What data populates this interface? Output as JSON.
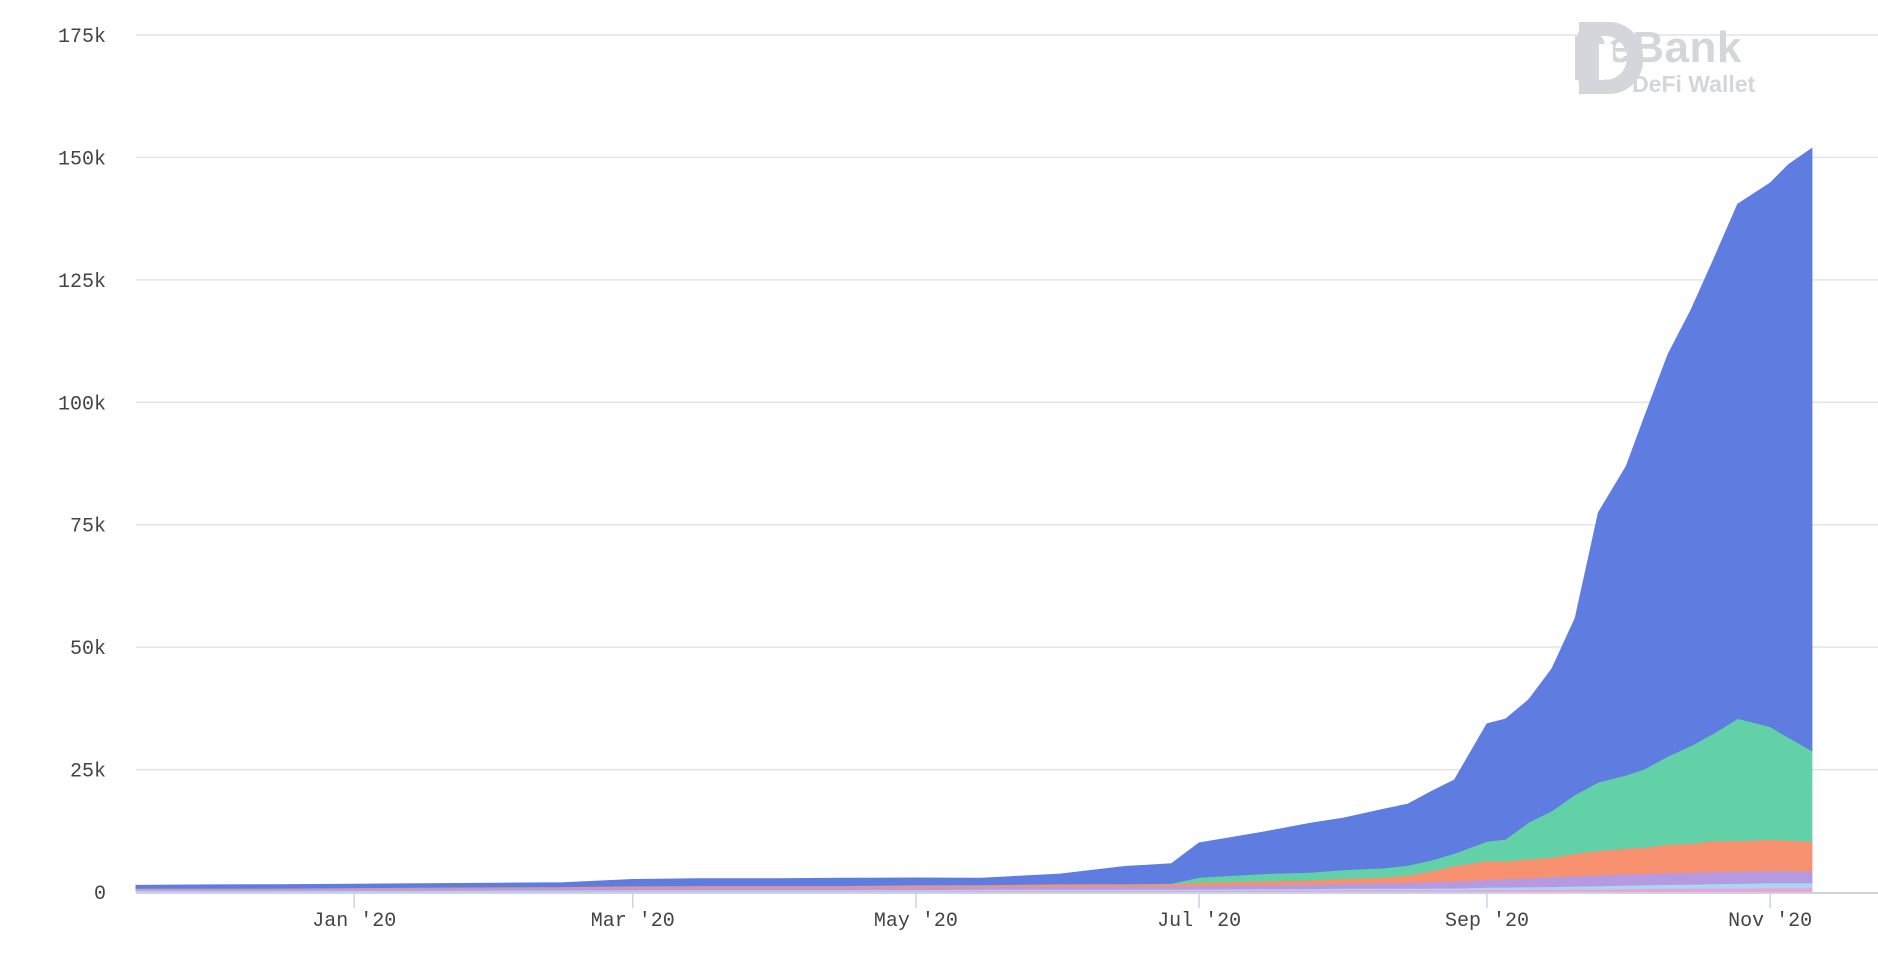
{
  "watermark": {
    "brand": "DeBank",
    "tagline": "Your DeFi Wallet",
    "logo_icon": "debank-logo-icon"
  },
  "chart_data": {
    "type": "area",
    "stacked": true,
    "grid": true,
    "legend": "none",
    "ylim": [
      0,
      175000
    ],
    "yticks": [
      0,
      25000,
      50000,
      75000,
      100000,
      125000,
      150000,
      175000
    ],
    "ytick_labels": [
      "0",
      "25k",
      "50k",
      "75k",
      "100k",
      "125k",
      "150k",
      "175k"
    ],
    "xlim": [
      "2019-11-15",
      "2020-11-21"
    ],
    "xticks": [
      "2020-01-01",
      "2020-03-01",
      "2020-05-01",
      "2020-07-01",
      "2020-09-01",
      "2020-11-01"
    ],
    "xtick_labels": [
      "Jan '20",
      "Mar '20",
      "May '20",
      "Jul '20",
      "Sep '20",
      "Nov '20"
    ],
    "x": [
      "2019-11-15",
      "2019-12-01",
      "2019-12-15",
      "2020-01-01",
      "2020-01-15",
      "2020-02-01",
      "2020-02-15",
      "2020-03-01",
      "2020-03-15",
      "2020-04-01",
      "2020-04-15",
      "2020-05-01",
      "2020-05-15",
      "2020-06-01",
      "2020-06-15",
      "2020-06-25",
      "2020-07-01",
      "2020-07-15",
      "2020-07-25",
      "2020-08-01",
      "2020-08-10",
      "2020-08-15",
      "2020-08-20",
      "2020-08-25",
      "2020-09-01",
      "2020-09-05",
      "2020-09-10",
      "2020-09-15",
      "2020-09-20",
      "2020-09-25",
      "2020-10-01",
      "2020-10-05",
      "2020-10-10",
      "2020-10-15",
      "2020-10-20",
      "2020-10-25",
      "2020-11-01",
      "2020-11-05",
      "2020-11-10"
    ],
    "series": [
      {
        "color": "#f0a0d6",
        "values": [
          200,
          200,
          200,
          200,
          200,
          200,
          200,
          250,
          250,
          250,
          250,
          250,
          300,
          300,
          300,
          300,
          300,
          350,
          350,
          400,
          400,
          400,
          400,
          400,
          500,
          500,
          550,
          550,
          600,
          600,
          700,
          700,
          750,
          750,
          800,
          800,
          850,
          850,
          850
        ]
      },
      {
        "color": "#a8d8f0",
        "values": [
          150,
          150,
          150,
          150,
          150,
          200,
          200,
          200,
          200,
          200,
          200,
          250,
          250,
          250,
          250,
          250,
          300,
          300,
          300,
          350,
          350,
          350,
          400,
          400,
          450,
          500,
          500,
          550,
          600,
          650,
          700,
          750,
          800,
          850,
          900,
          950,
          1000,
          1000,
          1000
        ]
      },
      {
        "color": "#b59ae2",
        "values": [
          300,
          350,
          350,
          400,
          450,
          450,
          500,
          500,
          550,
          550,
          550,
          550,
          550,
          600,
          600,
          600,
          700,
          800,
          900,
          1000,
          1100,
          1200,
          1300,
          1400,
          1600,
          1700,
          1800,
          2000,
          2100,
          2200,
          2300,
          2300,
          2400,
          2400,
          2500,
          2500,
          2500,
          2500,
          2400
        ]
      },
      {
        "color": "#f7916f",
        "values": [
          100,
          100,
          100,
          150,
          150,
          200,
          200,
          300,
          300,
          300,
          300,
          400,
          400,
          500,
          500,
          500,
          700,
          800,
          900,
          1000,
          1200,
          1500,
          2200,
          3200,
          3800,
          3600,
          3900,
          4000,
          4600,
          5000,
          5200,
          5400,
          5800,
          5900,
          6300,
          6200,
          6400,
          6200,
          6100
        ]
      },
      {
        "color": "#62d1a8",
        "values": [
          0,
          0,
          0,
          0,
          0,
          0,
          0,
          0,
          0,
          0,
          0,
          0,
          0,
          0,
          50,
          100,
          1000,
          1500,
          1600,
          1800,
          1900,
          2000,
          2200,
          2500,
          4000,
          4500,
          7500,
          9500,
          12000,
          14000,
          15000,
          16000,
          18000,
          20000,
          22000,
          25000,
          23000,
          21000,
          18500
        ]
      },
      {
        "color": "#5f7de0",
        "values": [
          600,
          650,
          700,
          700,
          750,
          750,
          800,
          1300,
          1400,
          1400,
          1500,
          1400,
          1300,
          2000,
          3500,
          4000,
          7000,
          8500,
          10000,
          10500,
          12000,
          12500,
          14000,
          15000,
          24000,
          24500,
          25000,
          29000,
          36000,
          55000,
          63000,
          72000,
          82000,
          89000,
          97000,
          105000,
          111000,
          117000,
          123000
        ]
      }
    ]
  }
}
